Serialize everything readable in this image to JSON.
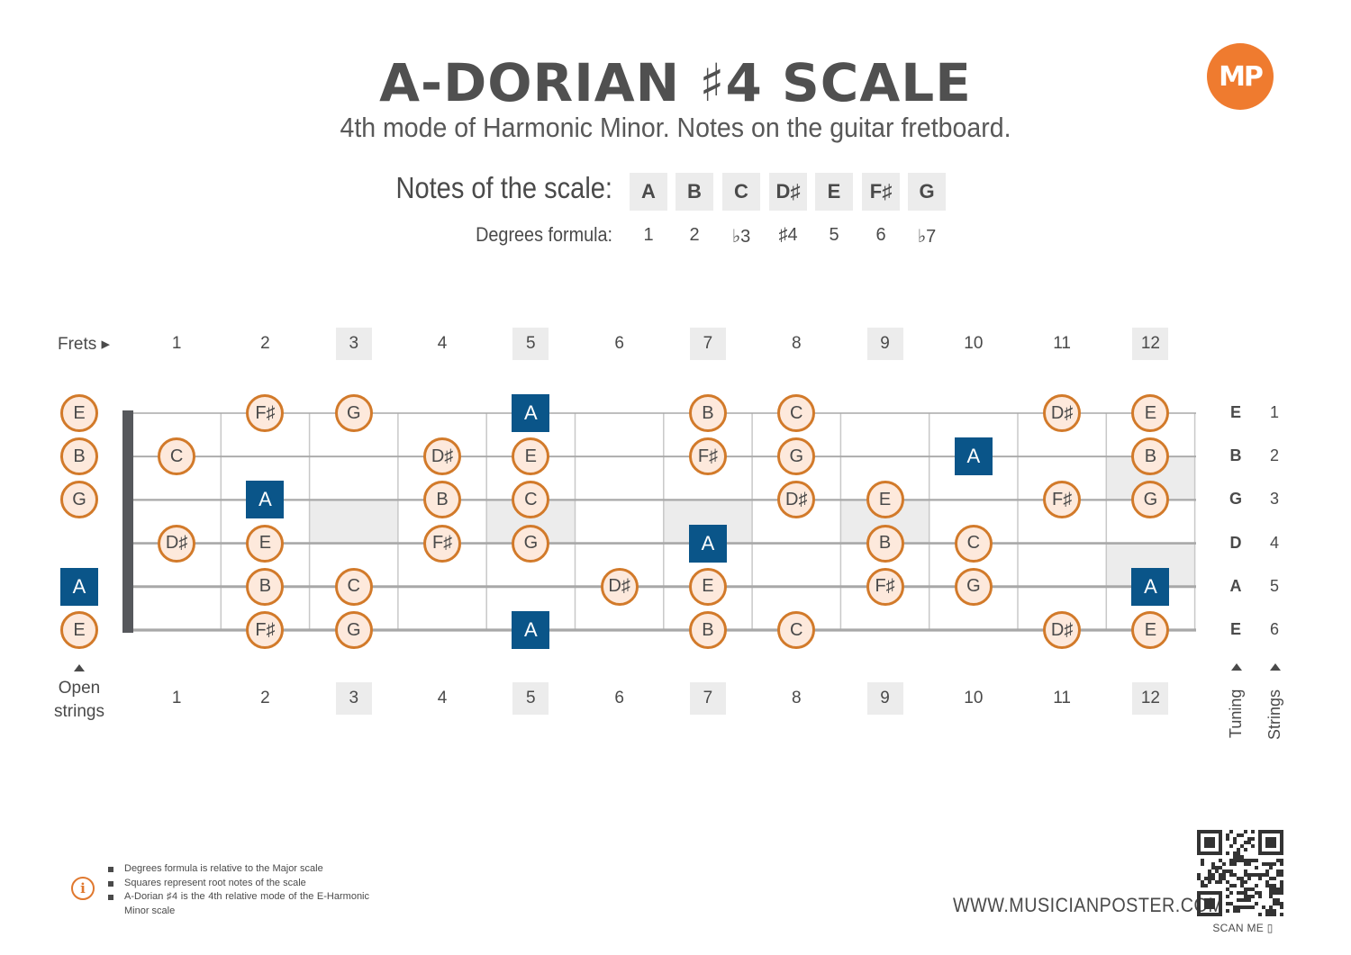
{
  "title": "A-DORIAN ♯4 SCALE",
  "subtitle": "4th mode of Harmonic Minor. Notes on the guitar fretboard.",
  "notes_label": "Notes of the scale:",
  "degrees_label": "Degrees formula:",
  "scale_notes": [
    "A",
    "B",
    "C",
    "D♯",
    "E",
    "F♯",
    "G"
  ],
  "degrees": [
    "1",
    "2",
    "♭3",
    "♯4",
    "5",
    "6",
    "♭7"
  ],
  "frets_label": "Frets ▸",
  "fret_numbers": [
    "1",
    "2",
    "3",
    "4",
    "5",
    "6",
    "7",
    "8",
    "9",
    "10",
    "11",
    "12"
  ],
  "marker_frets": [
    3,
    5,
    7,
    9,
    12
  ],
  "strings": [
    {
      "tuning": "E",
      "number": "1",
      "open": "E",
      "open_root": false,
      "notes": [
        {
          "fret": 2,
          "note": "F♯"
        },
        {
          "fret": 3,
          "note": "G"
        },
        {
          "fret": 5,
          "note": "A",
          "root": true
        },
        {
          "fret": 7,
          "note": "B"
        },
        {
          "fret": 8,
          "note": "C"
        },
        {
          "fret": 11,
          "note": "D♯"
        },
        {
          "fret": 12,
          "note": "E"
        }
      ]
    },
    {
      "tuning": "B",
      "number": "2",
      "open": "B",
      "open_root": false,
      "notes": [
        {
          "fret": 1,
          "note": "C"
        },
        {
          "fret": 4,
          "note": "D♯"
        },
        {
          "fret": 5,
          "note": "E"
        },
        {
          "fret": 7,
          "note": "F♯"
        },
        {
          "fret": 8,
          "note": "G"
        },
        {
          "fret": 10,
          "note": "A",
          "root": true
        },
        {
          "fret": 12,
          "note": "B"
        }
      ]
    },
    {
      "tuning": "G",
      "number": "3",
      "open": "G",
      "open_root": false,
      "notes": [
        {
          "fret": 2,
          "note": "A",
          "root": true
        },
        {
          "fret": 4,
          "note": "B"
        },
        {
          "fret": 5,
          "note": "C"
        },
        {
          "fret": 8,
          "note": "D♯"
        },
        {
          "fret": 9,
          "note": "E"
        },
        {
          "fret": 11,
          "note": "F♯"
        },
        {
          "fret": 12,
          "note": "G"
        }
      ]
    },
    {
      "tuning": "D",
      "number": "4",
      "open": "",
      "open_root": false,
      "notes": [
        {
          "fret": 1,
          "note": "D♯"
        },
        {
          "fret": 2,
          "note": "E"
        },
        {
          "fret": 4,
          "note": "F♯"
        },
        {
          "fret": 5,
          "note": "G"
        },
        {
          "fret": 7,
          "note": "A",
          "root": true
        },
        {
          "fret": 9,
          "note": "B"
        },
        {
          "fret": 10,
          "note": "C"
        }
      ]
    },
    {
      "tuning": "A",
      "number": "5",
      "open": "A",
      "open_root": true,
      "notes": [
        {
          "fret": 2,
          "note": "B"
        },
        {
          "fret": 3,
          "note": "C"
        },
        {
          "fret": 6,
          "note": "D♯"
        },
        {
          "fret": 7,
          "note": "E"
        },
        {
          "fret": 9,
          "note": "F♯"
        },
        {
          "fret": 10,
          "note": "G"
        },
        {
          "fret": 12,
          "note": "A",
          "root": true
        }
      ]
    },
    {
      "tuning": "E",
      "number": "6",
      "open": "E",
      "open_root": false,
      "notes": [
        {
          "fret": 2,
          "note": "F♯"
        },
        {
          "fret": 3,
          "note": "G"
        },
        {
          "fret": 5,
          "note": "A",
          "root": true
        },
        {
          "fret": 7,
          "note": "B"
        },
        {
          "fret": 8,
          "note": "C"
        },
        {
          "fret": 11,
          "note": "D♯"
        },
        {
          "fret": 12,
          "note": "E"
        }
      ]
    }
  ],
  "open_strings_label_line1": "Open",
  "open_strings_label_line2": "strings",
  "tuning_label": "Tuning",
  "strings_label": "Strings",
  "footnotes": [
    "Degrees formula is relative to the Major scale",
    "Squares represent root notes of the scale",
    "A-Dorian ♯4 is the 4th relative mode of the E-Harmonic Minor scale"
  ],
  "logo_text": "MP",
  "website": "WWW.MUSICIANPOSTER.COM",
  "scan_label": "SCAN ME",
  "colors": {
    "root": "#0a5589",
    "note_fill": "#fde9dc",
    "note_border": "#d27a2a",
    "accent": "#ef7b2f",
    "marker": "#ececec"
  }
}
